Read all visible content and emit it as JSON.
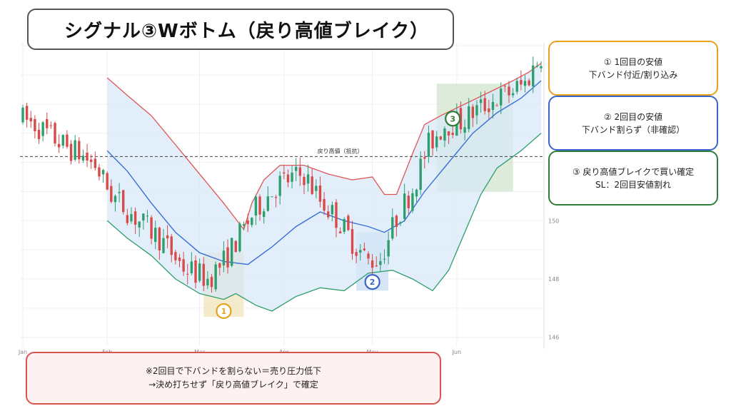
{
  "title": "シグナル③Wボトム（戻り高値ブレイク）",
  "notes": [
    {
      "line1": "① 1回目の安値",
      "line2": "下バンド付近/割り込み",
      "color": "#E8A020"
    },
    {
      "line1": "② 2回目の安値",
      "line2": "下バンド割らず（非確認）",
      "color": "#3A64C8"
    },
    {
      "line1": "③ 戻り高値ブレイクで買い確定",
      "line2": "SL：2回目安値割れ",
      "color": "#2E7D3A"
    }
  ],
  "bottom_note": {
    "line1": "※2回目で下バンドを割らない＝売り圧力低下",
    "line2": "→決め打ちせず「戻り高値ブレイク」で確定"
  },
  "chart_data": {
    "type": "candlestick",
    "xlabel": "",
    "ylabel": "",
    "x_ticks": [
      "Jan",
      "Feb",
      "Mar",
      "Apr",
      "May",
      "Jun"
    ],
    "y_ticks": [
      146,
      148,
      150
    ],
    "ylim": [
      145.7,
      156.1
    ],
    "y_axis_side": "right",
    "grid": true,
    "resistance": {
      "label": "戻り高値（抵抗）",
      "value": 152.2,
      "style": "dashed",
      "color": "#444444"
    },
    "bands": {
      "upper_color": "#E05555",
      "middle_color": "#3A6FD8",
      "lower_color": "#2E9E6E",
      "fill": "#D6E8F8"
    },
    "up_color": "#2E9E6E",
    "down_color": "#D84A4A",
    "markers": [
      {
        "label": "1",
        "color": "#E8A020",
        "zone_color": "#EFE3B8"
      },
      {
        "label": "2",
        "color": "#3A64C8",
        "zone_color": "#C6DCF2"
      },
      {
        "label": "3",
        "color": "#2E7D3A",
        "zone_color": "#CFE3CC"
      }
    ],
    "candle_count": 130,
    "close_path": [
      [
        0,
        153.5
      ],
      [
        3,
        153.3
      ],
      [
        6,
        153.0
      ],
      [
        10,
        152.6
      ],
      [
        14,
        152.3
      ],
      [
        18,
        151.9
      ],
      [
        22,
        150.9
      ],
      [
        28,
        150.1
      ],
      [
        34,
        149.4
      ],
      [
        40,
        148.4
      ],
      [
        46,
        148.0
      ],
      [
        50,
        148.6
      ],
      [
        54,
        149.5
      ],
      [
        58,
        150.4
      ],
      [
        64,
        151.3
      ],
      [
        70,
        151.6
      ],
      [
        74,
        150.7
      ],
      [
        78,
        150.1
      ],
      [
        82,
        149.3
      ],
      [
        86,
        148.6
      ],
      [
        89,
        148.7
      ],
      [
        93,
        150.1
      ],
      [
        97,
        151.1
      ],
      [
        101,
        152.6
      ],
      [
        105,
        153.3
      ],
      [
        109,
        153.4
      ],
      [
        113,
        153.8
      ],
      [
        117,
        154.1
      ],
      [
        121,
        154.4
      ],
      [
        125,
        154.7
      ],
      [
        129,
        155.7
      ]
    ],
    "upper_band": [
      [
        21,
        154.9
      ],
      [
        26,
        154.3
      ],
      [
        32,
        153.6
      ],
      [
        38,
        152.6
      ],
      [
        44,
        151.6
      ],
      [
        50,
        150.6
      ],
      [
        55,
        149.7
      ],
      [
        57,
        150.6
      ],
      [
        60,
        151.4
      ],
      [
        64,
        151.9
      ],
      [
        70,
        151.9
      ],
      [
        76,
        151.6
      ],
      [
        82,
        151.4
      ],
      [
        87,
        151.5
      ],
      [
        90,
        150.9
      ],
      [
        93,
        150.9
      ],
      [
        97,
        152.3
      ],
      [
        100,
        153.3
      ],
      [
        104,
        153.6
      ],
      [
        110,
        154.0
      ],
      [
        116,
        154.4
      ],
      [
        122,
        154.8
      ],
      [
        126,
        155.1
      ],
      [
        129,
        155.4
      ]
    ],
    "middle_band": [
      [
        21,
        152.4
      ],
      [
        26,
        151.7
      ],
      [
        32,
        150.6
      ],
      [
        38,
        149.6
      ],
      [
        44,
        148.9
      ],
      [
        50,
        148.6
      ],
      [
        56,
        148.5
      ],
      [
        62,
        149.1
      ],
      [
        68,
        149.8
      ],
      [
        74,
        150.3
      ],
      [
        80,
        150.0
      ],
      [
        86,
        149.8
      ],
      [
        90,
        149.6
      ],
      [
        95,
        150.0
      ],
      [
        100,
        151.0
      ],
      [
        106,
        152.0
      ],
      [
        112,
        153.0
      ],
      [
        118,
        153.7
      ],
      [
        124,
        154.2
      ],
      [
        129,
        154.8
      ]
    ],
    "lower_band": [
      [
        21,
        150.0
      ],
      [
        26,
        149.4
      ],
      [
        32,
        148.8
      ],
      [
        38,
        148.0
      ],
      [
        44,
        147.5
      ],
      [
        50,
        147.3
      ],
      [
        53,
        147.5
      ],
      [
        58,
        147.1
      ],
      [
        62,
        146.9
      ],
      [
        68,
        147.4
      ],
      [
        74,
        147.7
      ],
      [
        80,
        147.6
      ],
      [
        86,
        148.2
      ],
      [
        92,
        148.3
      ],
      [
        97,
        148.0
      ],
      [
        102,
        147.6
      ],
      [
        106,
        148.3
      ],
      [
        110,
        149.6
      ],
      [
        114,
        150.9
      ],
      [
        118,
        151.8
      ],
      [
        124,
        152.4
      ],
      [
        129,
        153.0
      ]
    ]
  }
}
